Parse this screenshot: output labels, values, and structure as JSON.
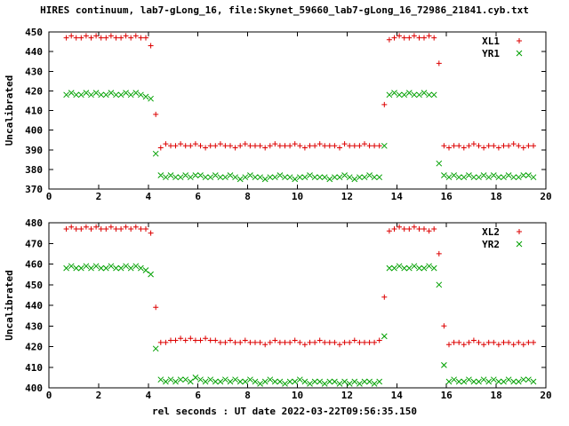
{
  "figure": {
    "title": "HIRES continuum, lab7-gLong_16, file:Skynet_59660_lab7-gLong_16_72986_21841.cyb.txt"
  },
  "colors": {
    "red_series": "#dd0000",
    "green_series": "#00a000",
    "frame": "#000000",
    "background": "#ffffff"
  },
  "chart_data": [
    {
      "type": "scatter",
      "panel": "top",
      "title": "",
      "xlabel": "",
      "ylabel": "Uncalibrated",
      "xlim": [
        0,
        20
      ],
      "ylim": [
        370,
        450
      ],
      "xtick_step": 2,
      "ytick_step": 10,
      "grid": false,
      "legend_position": "top right inside",
      "x": [
        0.7,
        0.9,
        1.1,
        1.3,
        1.5,
        1.7,
        1.9,
        2.1,
        2.3,
        2.5,
        2.7,
        2.9,
        3.1,
        3.3,
        3.5,
        3.7,
        3.9,
        4.1,
        4.3,
        4.5,
        4.7,
        4.9,
        5.1,
        5.3,
        5.5,
        5.7,
        5.9,
        6.1,
        6.3,
        6.5,
        6.7,
        6.9,
        7.1,
        7.3,
        7.5,
        7.7,
        7.9,
        8.1,
        8.3,
        8.5,
        8.7,
        8.9,
        9.1,
        9.3,
        9.5,
        9.7,
        9.9,
        10.1,
        10.3,
        10.5,
        10.7,
        10.9,
        11.1,
        11.3,
        11.5,
        11.7,
        11.9,
        12.1,
        12.3,
        12.5,
        12.7,
        12.9,
        13.1,
        13.3,
        13.5,
        13.7,
        13.9,
        14.1,
        14.3,
        14.5,
        14.7,
        14.9,
        15.1,
        15.3,
        15.5,
        15.7,
        15.9,
        16.1,
        16.3,
        16.5,
        16.7,
        16.9,
        17.1,
        17.3,
        17.5,
        17.7,
        17.9,
        18.1,
        18.3,
        18.5,
        18.7,
        18.9,
        19.1,
        19.3,
        19.5
      ],
      "series": [
        {
          "name": "XL1",
          "marker": "plus",
          "color": "#dd0000",
          "values": [
            447,
            448,
            447,
            447,
            448,
            447,
            448,
            447,
            447,
            448,
            447,
            447,
            448,
            447,
            448,
            447,
            447,
            443,
            408,
            391,
            393,
            392,
            392,
            393,
            392,
            392,
            393,
            392,
            391,
            392,
            392,
            393,
            392,
            392,
            391,
            392,
            393,
            392,
            392,
            392,
            391,
            392,
            393,
            392,
            392,
            392,
            393,
            392,
            391,
            392,
            392,
            393,
            392,
            392,
            392,
            391,
            393,
            392,
            392,
            392,
            393,
            392,
            392,
            392,
            413,
            446,
            447,
            448,
            447,
            447,
            448,
            447,
            447,
            448,
            447,
            434,
            392,
            391,
            392,
            392,
            391,
            392,
            393,
            392,
            391,
            392,
            392,
            391,
            392,
            392,
            393,
            392,
            391,
            392,
            392
          ]
        },
        {
          "name": "YR1",
          "marker": "cross",
          "color": "#00a000",
          "values": [
            418,
            419,
            418,
            418,
            419,
            418,
            419,
            418,
            418,
            419,
            418,
            418,
            419,
            418,
            419,
            418,
            417,
            416,
            388,
            377,
            376,
            377,
            376,
            376,
            377,
            376,
            377,
            377,
            376,
            376,
            377,
            376,
            376,
            377,
            376,
            375,
            376,
            377,
            376,
            376,
            375,
            376,
            376,
            377,
            376,
            376,
            375,
            376,
            376,
            377,
            376,
            376,
            376,
            375,
            376,
            376,
            377,
            376,
            375,
            376,
            376,
            377,
            376,
            376,
            392,
            418,
            419,
            418,
            418,
            419,
            418,
            418,
            419,
            418,
            418,
            383,
            377,
            376,
            377,
            376,
            376,
            377,
            376,
            376,
            377,
            376,
            377,
            376,
            376,
            377,
            376,
            376,
            377,
            377,
            376
          ]
        }
      ]
    },
    {
      "type": "scatter",
      "panel": "bottom",
      "title": "",
      "xlabel": "rel seconds : UT date 2022-03-22T09:56:35.150",
      "ylabel": "Uncalibrated",
      "xlim": [
        0,
        20
      ],
      "ylim": [
        400,
        480
      ],
      "xtick_step": 2,
      "ytick_step": 10,
      "grid": false,
      "legend_position": "top right inside",
      "x": [
        0.7,
        0.9,
        1.1,
        1.3,
        1.5,
        1.7,
        1.9,
        2.1,
        2.3,
        2.5,
        2.7,
        2.9,
        3.1,
        3.3,
        3.5,
        3.7,
        3.9,
        4.1,
        4.3,
        4.5,
        4.7,
        4.9,
        5.1,
        5.3,
        5.5,
        5.7,
        5.9,
        6.1,
        6.3,
        6.5,
        6.7,
        6.9,
        7.1,
        7.3,
        7.5,
        7.7,
        7.9,
        8.1,
        8.3,
        8.5,
        8.7,
        8.9,
        9.1,
        9.3,
        9.5,
        9.7,
        9.9,
        10.1,
        10.3,
        10.5,
        10.7,
        10.9,
        11.1,
        11.3,
        11.5,
        11.7,
        11.9,
        12.1,
        12.3,
        12.5,
        12.7,
        12.9,
        13.1,
        13.3,
        13.5,
        13.7,
        13.9,
        14.1,
        14.3,
        14.5,
        14.7,
        14.9,
        15.1,
        15.3,
        15.5,
        15.7,
        15.9,
        16.1,
        16.3,
        16.5,
        16.7,
        16.9,
        17.1,
        17.3,
        17.5,
        17.7,
        17.9,
        18.1,
        18.3,
        18.5,
        18.7,
        18.9,
        19.1,
        19.3,
        19.5
      ],
      "series": [
        {
          "name": "XL2",
          "marker": "plus",
          "color": "#dd0000",
          "values": [
            477,
            478,
            477,
            477,
            478,
            477,
            478,
            477,
            477,
            478,
            477,
            477,
            478,
            477,
            478,
            477,
            477,
            475,
            439,
            422,
            422,
            423,
            423,
            424,
            423,
            424,
            423,
            423,
            424,
            423,
            423,
            422,
            422,
            423,
            422,
            422,
            423,
            422,
            422,
            422,
            421,
            422,
            423,
            422,
            422,
            422,
            423,
            422,
            421,
            422,
            422,
            423,
            422,
            422,
            422,
            421,
            422,
            422,
            423,
            422,
            422,
            422,
            422,
            423,
            444,
            476,
            477,
            478,
            477,
            477,
            478,
            477,
            477,
            476,
            477,
            465,
            430,
            421,
            422,
            422,
            421,
            422,
            423,
            422,
            421,
            422,
            422,
            421,
            422,
            422,
            421,
            422,
            421,
            422,
            422
          ]
        },
        {
          "name": "YR2",
          "marker": "cross",
          "color": "#00a000",
          "values": [
            458,
            459,
            458,
            458,
            459,
            458,
            459,
            458,
            458,
            459,
            458,
            458,
            459,
            458,
            459,
            458,
            457,
            455,
            419,
            404,
            403,
            404,
            403,
            404,
            404,
            403,
            405,
            404,
            403,
            404,
            403,
            403,
            404,
            403,
            404,
            403,
            403,
            404,
            403,
            402,
            403,
            404,
            403,
            403,
            402,
            403,
            403,
            404,
            403,
            402,
            403,
            403,
            402,
            403,
            403,
            402,
            403,
            402,
            403,
            402,
            403,
            403,
            402,
            403,
            425,
            458,
            458,
            459,
            458,
            458,
            459,
            458,
            458,
            459,
            458,
            450,
            411,
            403,
            404,
            403,
            403,
            404,
            403,
            403,
            404,
            403,
            404,
            403,
            403,
            404,
            403,
            403,
            404,
            404,
            403
          ]
        }
      ]
    }
  ]
}
